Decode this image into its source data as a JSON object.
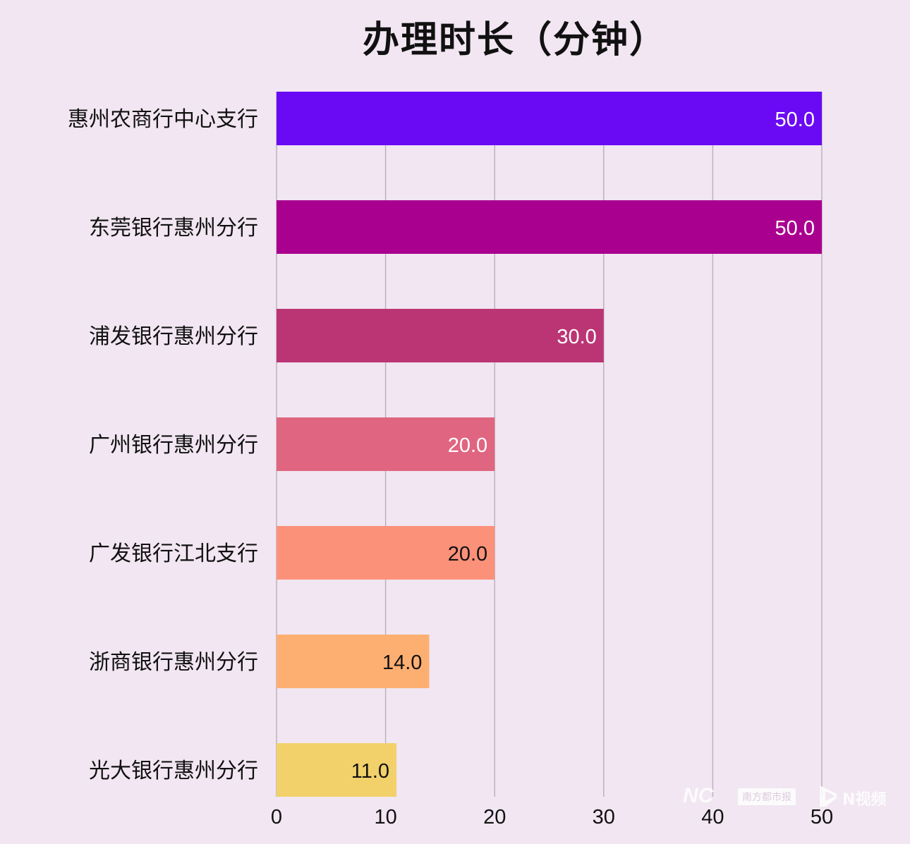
{
  "chart_data": {
    "type": "bar",
    "orientation": "horizontal",
    "title": "办理时长（分钟）",
    "categories": [
      "惠州农商行中心支行",
      "东莞银行惠州分行",
      "浦发银行惠州分行",
      "广州银行惠州分行",
      "广发银行江北支行",
      "浙商银行惠州分行",
      "光大银行惠州分行"
    ],
    "values": [
      50.0,
      50.0,
      30.0,
      20.0,
      20.0,
      14.0,
      11.0
    ],
    "value_labels": [
      "50.0",
      "50.0",
      "30.0",
      "20.0",
      "20.0",
      "14.0",
      "11.0"
    ],
    "bar_colors": [
      "#6a0af5",
      "#a9008f",
      "#bb3574",
      "#e06580",
      "#fc917a",
      "#fdaf72",
      "#f2d16a"
    ],
    "label_colors": [
      "#ffffff",
      "#ffffff",
      "#ffffff",
      "#ffffff",
      "#111111",
      "#111111",
      "#111111"
    ],
    "xlim": [
      0,
      50
    ],
    "xticks": [
      0,
      10,
      20,
      30,
      40,
      50
    ],
    "xtick_labels": [
      "0",
      "10",
      "20",
      "30",
      "40",
      "50"
    ],
    "grid": "vertical",
    "legend": "none"
  },
  "watermark": {
    "brand": "NC",
    "paper_name": "南方都市报",
    "video_name": "N视频"
  }
}
